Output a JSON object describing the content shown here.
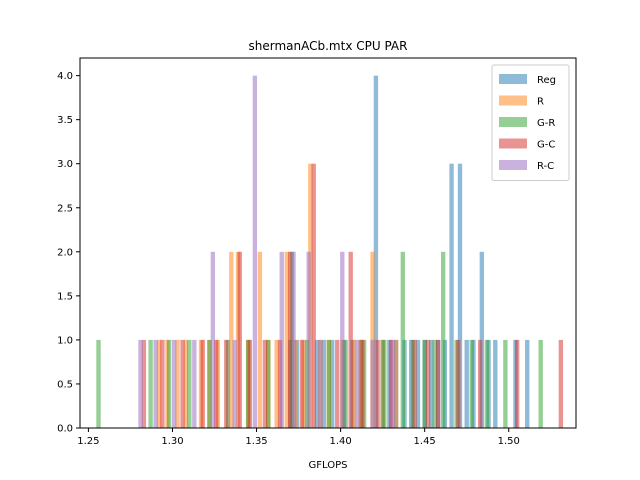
{
  "chart_data": {
    "type": "bar",
    "title": "shermanACb.mtx CPU PAR",
    "xlabel": "GFLOPS",
    "ylabel": "",
    "xlim": [
      1.245,
      1.54
    ],
    "ylim": [
      0,
      4.2
    ],
    "xticks": [
      "1.25",
      "1.30",
      "1.35",
      "1.40",
      "1.45",
      "1.50"
    ],
    "yticks": [
      "0.0",
      "0.5",
      "1.0",
      "1.5",
      "2.0",
      "2.5",
      "3.0",
      "3.5",
      "4.0"
    ],
    "grid": false,
    "legend_position": "top-right",
    "bar_width": 0.0026,
    "series": [
      {
        "name": "Reg",
        "color": "#1f77b4",
        "x": [
          1.37,
          1.374,
          1.386,
          1.39,
          1.395,
          1.402,
          1.407,
          1.412,
          1.421,
          1.425,
          1.429,
          1.433,
          1.438,
          1.442,
          1.446,
          1.45,
          1.454,
          1.458,
          1.462,
          1.466,
          1.471,
          1.475,
          1.479,
          1.484,
          1.488,
          1.492,
          1.504,
          1.511
        ],
        "values": [
          1,
          1,
          1,
          1,
          1,
          1,
          1,
          1,
          4,
          1,
          1,
          1,
          1,
          1,
          1,
          1,
          1,
          1,
          1,
          3,
          3,
          1,
          1,
          2,
          1,
          1,
          1,
          1
        ]
      },
      {
        "name": "R",
        "color": "#ff7f0e",
        "x": [
          1.292,
          1.297,
          1.303,
          1.308,
          1.317,
          1.322,
          1.327,
          1.335,
          1.339,
          1.345,
          1.352,
          1.357,
          1.362,
          1.368,
          1.373,
          1.378,
          1.382,
          1.388,
          1.393,
          1.401,
          1.408,
          1.412,
          1.419,
          1.425,
          1.433
        ],
        "values": [
          1,
          1,
          1,
          1,
          1,
          1,
          1,
          2,
          2,
          1,
          2,
          1,
          1,
          2,
          1,
          1,
          3,
          1,
          1,
          1,
          1,
          1,
          2,
          1,
          1
        ]
      },
      {
        "name": "G-R",
        "color": "#2ca02c",
        "x": [
          1.256,
          1.287,
          1.298,
          1.31,
          1.322,
          1.333,
          1.345,
          1.357,
          1.371,
          1.38,
          1.393,
          1.403,
          1.414,
          1.426,
          1.437,
          1.443,
          1.45,
          1.456,
          1.461,
          1.469,
          1.478,
          1.487,
          1.498,
          1.519
        ],
        "values": [
          1,
          1,
          1,
          1,
          1,
          1,
          1,
          1,
          2,
          1,
          1,
          1,
          1,
          1,
          2,
          1,
          1,
          1,
          2,
          1,
          1,
          1,
          1,
          1
        ]
      },
      {
        "name": "G-C",
        "color": "#d62728",
        "x": [
          1.283,
          1.294,
          1.306,
          1.318,
          1.326,
          1.332,
          1.34,
          1.346,
          1.355,
          1.364,
          1.37,
          1.377,
          1.384,
          1.398,
          1.406,
          1.413,
          1.422,
          1.43,
          1.444,
          1.452,
          1.458,
          1.47,
          1.483,
          1.505,
          1.531
        ],
        "values": [
          1,
          1,
          1,
          1,
          1,
          1,
          2,
          1,
          1,
          1,
          2,
          1,
          3,
          1,
          2,
          1,
          1,
          1,
          1,
          1,
          1,
          1,
          1,
          1,
          1
        ]
      },
      {
        "name": "R-C",
        "color": "#9467bd",
        "x": [
          1.281,
          1.29,
          1.301,
          1.313,
          1.324,
          1.337,
          1.349,
          1.365,
          1.372,
          1.381,
          1.388,
          1.401,
          1.41,
          1.419,
          1.431
        ],
        "values": [
          1,
          1,
          1,
          1,
          2,
          1,
          4,
          2,
          2,
          2,
          1,
          2,
          1,
          1,
          1
        ]
      }
    ]
  }
}
